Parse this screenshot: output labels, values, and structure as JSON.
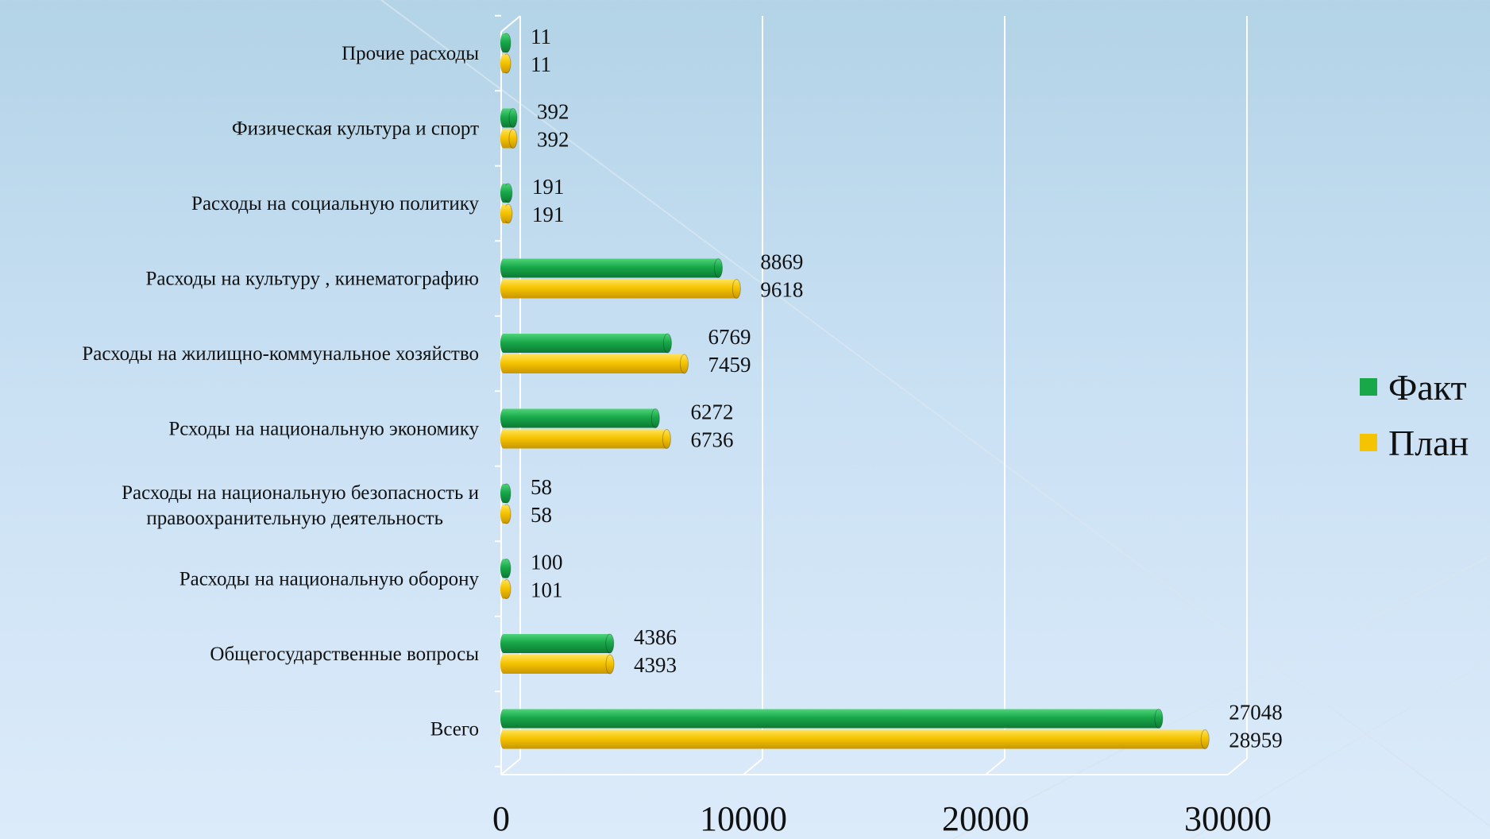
{
  "colors": {
    "fact": "#18a84a",
    "plan": "#f5c400"
  },
  "legend": {
    "items": [
      {
        "label": "Факт",
        "color": "#18a84a"
      },
      {
        "label": "План",
        "color": "#f5c400"
      }
    ]
  },
  "chart_data": {
    "type": "bar",
    "orientation": "horizontal",
    "categories": [
      "Прочие расходы",
      "Физическая культура и спорт",
      "Расходы на социальную политику",
      "Расходы на культуру , кинематографию",
      "Расходы на жилищно-коммунальное хозяйство",
      "Рсходы на национальную экономику",
      "Расходы на национальную безопасность и правоохранительную деятельность",
      "Расходы на национальную оборону",
      "Общегосударственные вопросы",
      "Всего"
    ],
    "category_lines": [
      [
        "Прочие расходы"
      ],
      [
        "Физическая культура и спорт"
      ],
      [
        "Расходы на социальную политику"
      ],
      [
        "Расходы на культуру , кинематографию"
      ],
      [
        "Расходы на жилищно-коммунальное хозяйство"
      ],
      [
        "Рсходы на национальную экономику"
      ],
      [
        "Расходы на национальную безопасность и",
        "правоохранительную деятельность"
      ],
      [
        "Расходы на национальную оборону"
      ],
      [
        "Общегосударственные вопросы"
      ],
      [
        "Всего"
      ]
    ],
    "series": [
      {
        "name": "Факт",
        "values": [
          11,
          392,
          191,
          8869,
          6769,
          6272,
          58,
          100,
          4386,
          27048
        ]
      },
      {
        "name": "План",
        "values": [
          11,
          392,
          191,
          9618,
          7459,
          6736,
          58,
          101,
          4393,
          28959
        ]
      }
    ],
    "xlim": [
      0,
      30000
    ],
    "xticks": [
      0,
      10000,
      20000,
      30000
    ],
    "tick_labels": [
      "0",
      "10000",
      "20000",
      "30000"
    ],
    "grid": true,
    "legend_position": "right",
    "three_d": true
  }
}
